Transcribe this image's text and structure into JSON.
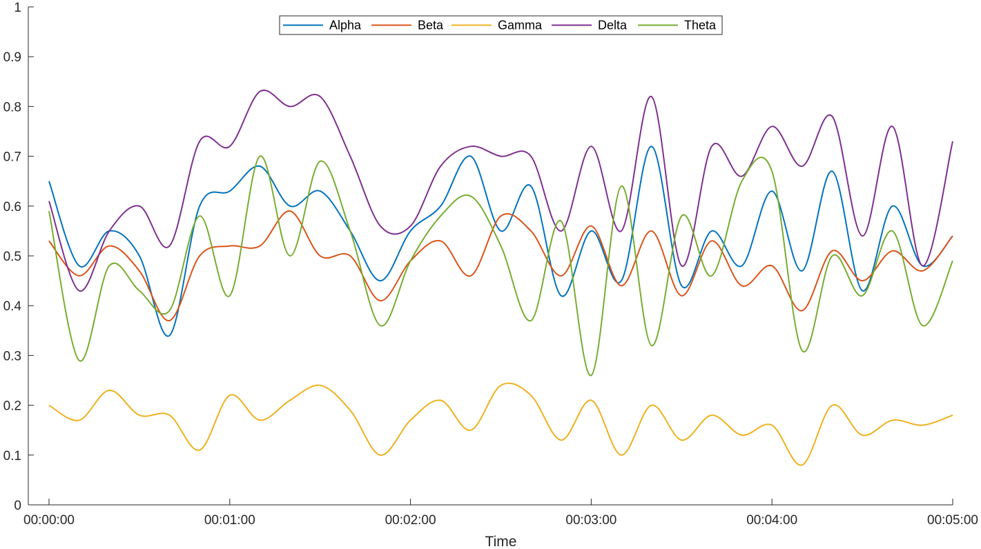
{
  "chart_data": {
    "type": "line",
    "xlabel": "Time",
    "ylabel": "",
    "ylim": [
      0,
      1
    ],
    "yticks": [
      "0",
      "0.1",
      "0.2",
      "0.3",
      "0.4",
      "0.5",
      "0.6",
      "0.7",
      "0.8",
      "0.9",
      "1"
    ],
    "xticks": [
      "00:00:00",
      "00:01:00",
      "00:02:00",
      "00:03:00",
      "00:04:00",
      "00:05:00"
    ],
    "grid": false,
    "legend_position": "top-center",
    "x": [
      "00:00:00",
      "00:00:10",
      "00:00:20",
      "00:00:30",
      "00:00:40",
      "00:00:50",
      "00:01:00",
      "00:01:10",
      "00:01:20",
      "00:01:30",
      "00:01:40",
      "00:01:50",
      "00:02:00",
      "00:02:10",
      "00:02:20",
      "00:02:30",
      "00:02:40",
      "00:02:50",
      "00:03:00",
      "00:03:10",
      "00:03:20",
      "00:03:30",
      "00:03:40",
      "00:03:50",
      "00:04:00",
      "00:04:10",
      "00:04:20",
      "00:04:30",
      "00:04:40",
      "00:04:50",
      "00:05:00"
    ],
    "series": [
      {
        "name": "Alpha",
        "color": "#0072BD",
        "values": [
          0.65,
          0.48,
          0.55,
          0.5,
          0.34,
          0.6,
          0.63,
          0.68,
          0.6,
          0.63,
          0.55,
          0.45,
          0.55,
          0.6,
          0.7,
          0.55,
          0.64,
          0.42,
          0.55,
          0.45,
          0.72,
          0.44,
          0.55,
          0.48,
          0.63,
          0.47,
          0.67,
          0.43,
          0.6,
          0.48,
          0.54
        ]
      },
      {
        "name": "Beta",
        "color": "#D95319",
        "values": [
          0.53,
          0.46,
          0.52,
          0.47,
          0.37,
          0.5,
          0.52,
          0.52,
          0.59,
          0.5,
          0.5,
          0.41,
          0.49,
          0.53,
          0.46,
          0.58,
          0.55,
          0.46,
          0.56,
          0.44,
          0.55,
          0.42,
          0.53,
          0.44,
          0.48,
          0.39,
          0.51,
          0.45,
          0.51,
          0.47,
          0.54
        ]
      },
      {
        "name": "Gamma",
        "color": "#EDB120",
        "values": [
          0.2,
          0.17,
          0.23,
          0.18,
          0.18,
          0.11,
          0.22,
          0.17,
          0.21,
          0.24,
          0.19,
          0.1,
          0.17,
          0.21,
          0.15,
          0.24,
          0.22,
          0.13,
          0.21,
          0.1,
          0.2,
          0.13,
          0.18,
          0.14,
          0.16,
          0.08,
          0.2,
          0.14,
          0.17,
          0.16,
          0.18
        ]
      },
      {
        "name": "Delta",
        "color": "#7E2F8E",
        "values": [
          0.61,
          0.43,
          0.55,
          0.6,
          0.52,
          0.73,
          0.72,
          0.83,
          0.8,
          0.82,
          0.7,
          0.56,
          0.56,
          0.68,
          0.72,
          0.7,
          0.7,
          0.55,
          0.72,
          0.55,
          0.82,
          0.48,
          0.72,
          0.66,
          0.76,
          0.68,
          0.78,
          0.54,
          0.76,
          0.48,
          0.73
        ]
      },
      {
        "name": "Theta",
        "color": "#77AC30",
        "values": [
          0.59,
          0.29,
          0.48,
          0.43,
          0.39,
          0.58,
          0.42,
          0.7,
          0.5,
          0.69,
          0.55,
          0.36,
          0.49,
          0.58,
          0.62,
          0.52,
          0.37,
          0.57,
          0.26,
          0.64,
          0.32,
          0.58,
          0.46,
          0.65,
          0.67,
          0.31,
          0.5,
          0.42,
          0.55,
          0.36,
          0.49
        ]
      }
    ]
  }
}
